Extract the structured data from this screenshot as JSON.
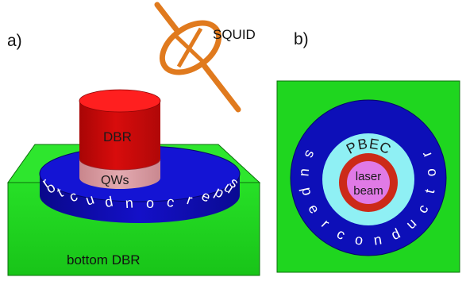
{
  "labels": {
    "panel_a": "a)",
    "panel_b": "b)",
    "squid": "SQUID",
    "dbr": "DBR",
    "qws": "QWs",
    "bottom_dbr": "bottom DBR",
    "laser_line1": "laser",
    "laser_line2": "beam"
  },
  "side_ring_letters": [
    "s",
    "u",
    "p",
    "e",
    "r",
    "c",
    "o",
    "n",
    "d",
    "u",
    "c",
    "t",
    "o",
    "r"
  ],
  "top_ring_letters": [
    "s",
    "u",
    "p",
    "e",
    "r",
    "c",
    "o",
    "n",
    "d",
    "u",
    "c",
    "t",
    "o",
    "r"
  ],
  "pbec_letters": [
    "P",
    "B",
    "E",
    "C"
  ],
  "colors": {
    "green": "#1fd61f",
    "superconductor_blue": "#0d0fb8",
    "dbr_red": "#d50b0b",
    "dbr_top": "#ff1a1a",
    "qw_pink": "#d99aa0",
    "squid_orange": "#e07a1e",
    "pbec_cyan": "#8ff0f4",
    "laser_ring_red": "#cc2a18",
    "laser_beam_violet": "#e07ae6"
  }
}
